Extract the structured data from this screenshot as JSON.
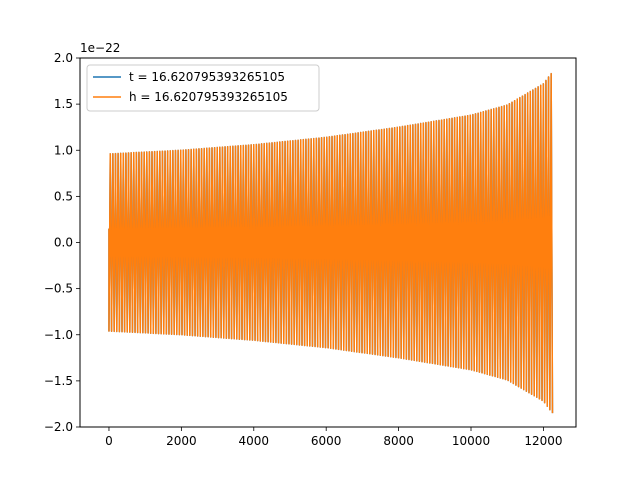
{
  "chart_data": {
    "type": "line",
    "title": "",
    "xlabel": "",
    "ylabel": "",
    "y_offset_text": "1e−22",
    "xlim": [
      -800,
      12900
    ],
    "ylim": [
      -2.0,
      2.0
    ],
    "x_ticks": [
      0,
      2000,
      4000,
      6000,
      8000,
      10000,
      12000
    ],
    "x_tick_labels": [
      "0",
      "2000",
      "4000",
      "6000",
      "8000",
      "10000",
      "12000"
    ],
    "y_ticks": [
      -2.0,
      -1.5,
      -1.0,
      -0.5,
      0.0,
      0.5,
      1.0,
      1.5,
      2.0
    ],
    "y_tick_labels": [
      "−2.0",
      "−1.5",
      "−1.0",
      "−0.5",
      "0.0",
      "0.5",
      "1.0",
      "1.5",
      "2.0"
    ],
    "grid": false,
    "legend_position": "top-left",
    "series": [
      {
        "name": "t = 16.620795393265105",
        "color": "#1f77b4",
        "x_range": [
          0,
          12250
        ],
        "envelope": {
          "x": [
            0,
            2000,
            4000,
            6000,
            8000,
            10000,
            11000,
            12000,
            12250
          ],
          "y": [
            0.96,
            1.0,
            1.06,
            1.14,
            1.25,
            1.38,
            1.49,
            1.72,
            1.85
          ]
        },
        "cycles": 170
      },
      {
        "name": "h = 16.620795393265105",
        "color": "#ff7f0e",
        "x_range": [
          0,
          12250
        ],
        "envelope": {
          "x": [
            0,
            2000,
            4000,
            6000,
            8000,
            10000,
            11000,
            12000,
            12250
          ],
          "y": [
            0.96,
            1.0,
            1.06,
            1.14,
            1.25,
            1.38,
            1.49,
            1.72,
            1.85
          ]
        },
        "cycles": 170
      }
    ]
  }
}
